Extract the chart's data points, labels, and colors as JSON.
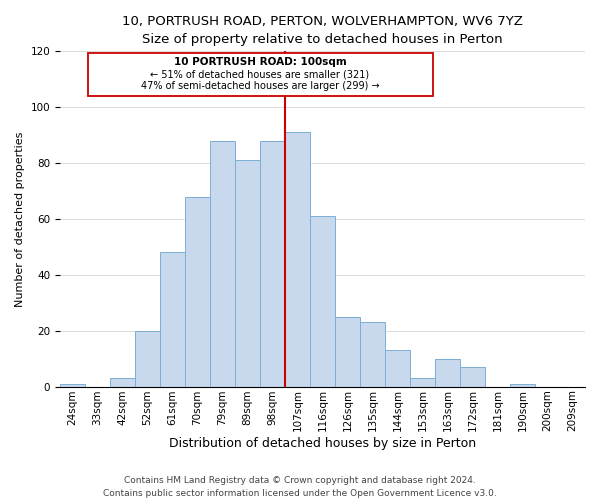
{
  "title": "10, PORTRUSH ROAD, PERTON, WOLVERHAMPTON, WV6 7YZ",
  "subtitle": "Size of property relative to detached houses in Perton",
  "xlabel": "Distribution of detached houses by size in Perton",
  "ylabel": "Number of detached properties",
  "bar_labels": [
    "24sqm",
    "33sqm",
    "42sqm",
    "52sqm",
    "61sqm",
    "70sqm",
    "79sqm",
    "89sqm",
    "98sqm",
    "107sqm",
    "116sqm",
    "126sqm",
    "135sqm",
    "144sqm",
    "153sqm",
    "163sqm",
    "172sqm",
    "181sqm",
    "190sqm",
    "200sqm",
    "209sqm"
  ],
  "bar_values": [
    1,
    0,
    3,
    20,
    48,
    68,
    88,
    81,
    88,
    91,
    61,
    25,
    23,
    13,
    3,
    10,
    7,
    0,
    1,
    0,
    0
  ],
  "bar_color": "#c8d9ed",
  "bar_edgecolor": "#7bafd4",
  "reference_line_x": 8.5,
  "reference_line_label": "10 PORTRUSH ROAD: 100sqm",
  "annotation_line1": "← 51% of detached houses are smaller (321)",
  "annotation_line2": "47% of semi-detached houses are larger (299) →",
  "vline_color": "#cc0000",
  "box_edgecolor": "#cc0000",
  "box_facecolor": "#ffffff",
  "footer_line1": "Contains HM Land Registry data © Crown copyright and database right 2024.",
  "footer_line2": "Contains public sector information licensed under the Open Government Licence v3.0.",
  "ylim": [
    0,
    120
  ],
  "title_fontsize": 9.5,
  "xlabel_fontsize": 9,
  "ylabel_fontsize": 8,
  "tick_fontsize": 7.5,
  "footer_fontsize": 6.5,
  "annot_fontsize_title": 7.5,
  "annot_fontsize_body": 7
}
